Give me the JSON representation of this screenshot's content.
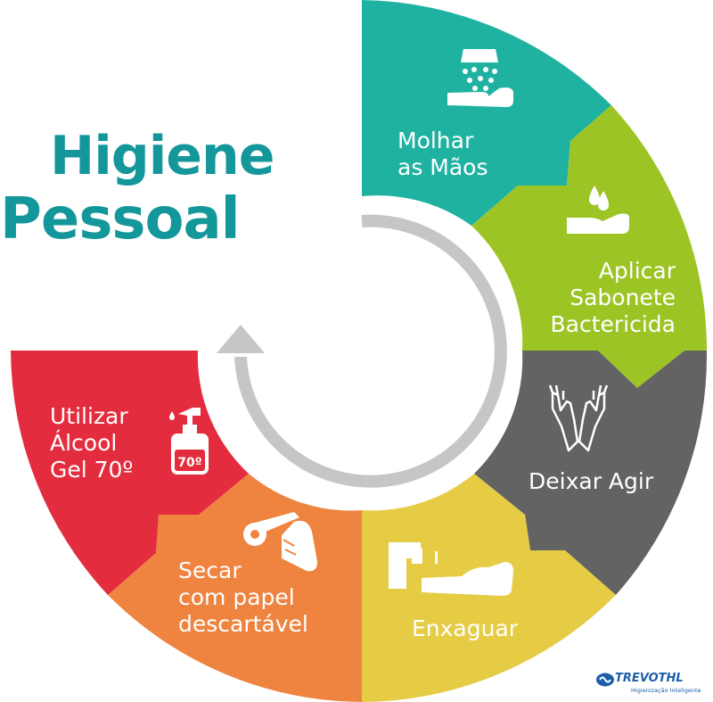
{
  "title": {
    "line1": "Higiene",
    "line2": "Pessoal"
  },
  "colors": {
    "title": "#14979a",
    "molhar": "#20b2a1",
    "aplicar": "#9dc425",
    "deixar": "#636363",
    "enxaguar": "#e5cc44",
    "secar": "#ee8440",
    "utilizar": "#e32d3f",
    "arrow": "#c6c6c6"
  },
  "steps": {
    "molhar": {
      "line1": "Molhar",
      "line2": "as Mãos",
      "icon": "shower-hand-icon"
    },
    "aplicar": {
      "line1": "Aplicar",
      "line2": "Sabonete",
      "line3": "Bactericida",
      "icon": "soap-drop-hand-icon"
    },
    "deixar": {
      "line1": "Deixar Agir",
      "icon": "rubbing-hands-icon"
    },
    "enxaguar": {
      "line1": "Enxaguar",
      "icon": "faucet-hand-icon"
    },
    "secar": {
      "line1": "Secar",
      "line2": "com papel",
      "line3": "descartável",
      "icon": "paper-towel-hand-icon"
    },
    "utilizar": {
      "line1": "Utilizar",
      "line2": "Álcool",
      "line3": "Gel 70º",
      "icon": "gel-bottle-icon",
      "bottle_text": "70º"
    }
  },
  "logo": {
    "name": "TREVOTHL",
    "tagline": "Higienização Inteligente"
  }
}
